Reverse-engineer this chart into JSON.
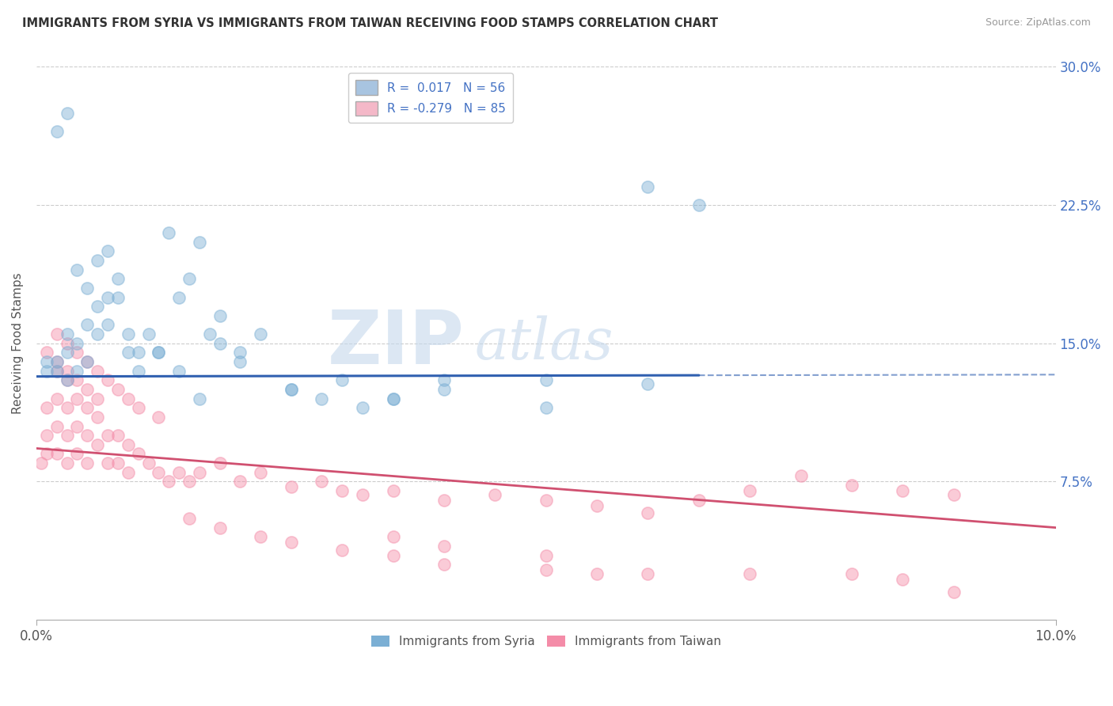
{
  "title": "IMMIGRANTS FROM SYRIA VS IMMIGRANTS FROM TAIWAN RECEIVING FOOD STAMPS CORRELATION CHART",
  "source": "Source: ZipAtlas.com",
  "ylabel": "Receiving Food Stamps",
  "x_min": 0.0,
  "x_max": 0.1,
  "y_min": 0.0,
  "y_max": 0.3,
  "x_tick_labels": [
    "0.0%",
    "10.0%"
  ],
  "y_ticks_right": [
    0.075,
    0.15,
    0.225,
    0.3
  ],
  "y_tick_labels_right": [
    "7.5%",
    "15.0%",
    "22.5%",
    "30.0%"
  ],
  "legend_entries": [
    {
      "label": "R =  0.017   N = 56",
      "color": "#a8c4e0"
    },
    {
      "label": "R = -0.279   N = 85",
      "color": "#f4b8c8"
    }
  ],
  "legend_bottom": [
    "Immigrants from Syria",
    "Immigrants from Taiwan"
  ],
  "syria_color": "#7bafd4",
  "taiwan_color": "#f48ca8",
  "syria_line_color": "#3060b0",
  "taiwan_line_color": "#d05070",
  "watermark": "ZIPatlas",
  "background_color": "#ffffff",
  "grid_color": "#cccccc",
  "syria_x": [
    0.001,
    0.001,
    0.002,
    0.002,
    0.003,
    0.003,
    0.003,
    0.004,
    0.004,
    0.005,
    0.005,
    0.006,
    0.006,
    0.007,
    0.007,
    0.008,
    0.009,
    0.01,
    0.011,
    0.012,
    0.013,
    0.014,
    0.015,
    0.016,
    0.017,
    0.018,
    0.02,
    0.022,
    0.025,
    0.028,
    0.032,
    0.035,
    0.04,
    0.05,
    0.06,
    0.065,
    0.002,
    0.003,
    0.004,
    0.005,
    0.006,
    0.007,
    0.008,
    0.009,
    0.01,
    0.012,
    0.014,
    0.016,
    0.018,
    0.02,
    0.025,
    0.03,
    0.035,
    0.04,
    0.05,
    0.06
  ],
  "syria_y": [
    0.135,
    0.14,
    0.14,
    0.135,
    0.155,
    0.145,
    0.13,
    0.15,
    0.135,
    0.16,
    0.14,
    0.17,
    0.155,
    0.175,
    0.16,
    0.185,
    0.155,
    0.145,
    0.155,
    0.145,
    0.21,
    0.175,
    0.185,
    0.205,
    0.155,
    0.165,
    0.145,
    0.155,
    0.125,
    0.12,
    0.115,
    0.12,
    0.13,
    0.115,
    0.235,
    0.225,
    0.265,
    0.275,
    0.19,
    0.18,
    0.195,
    0.2,
    0.175,
    0.145,
    0.135,
    0.145,
    0.135,
    0.12,
    0.15,
    0.14,
    0.125,
    0.13,
    0.12,
    0.125,
    0.13,
    0.128
  ],
  "taiwan_x": [
    0.0005,
    0.001,
    0.001,
    0.001,
    0.002,
    0.002,
    0.002,
    0.002,
    0.003,
    0.003,
    0.003,
    0.003,
    0.004,
    0.004,
    0.004,
    0.005,
    0.005,
    0.005,
    0.006,
    0.006,
    0.007,
    0.007,
    0.008,
    0.008,
    0.009,
    0.009,
    0.01,
    0.011,
    0.012,
    0.013,
    0.014,
    0.015,
    0.016,
    0.018,
    0.02,
    0.022,
    0.025,
    0.028,
    0.03,
    0.032,
    0.035,
    0.04,
    0.045,
    0.05,
    0.055,
    0.06,
    0.065,
    0.07,
    0.075,
    0.08,
    0.085,
    0.09,
    0.001,
    0.002,
    0.002,
    0.003,
    0.003,
    0.004,
    0.004,
    0.005,
    0.005,
    0.006,
    0.006,
    0.007,
    0.008,
    0.009,
    0.01,
    0.012,
    0.015,
    0.018,
    0.022,
    0.025,
    0.03,
    0.035,
    0.04,
    0.05,
    0.06,
    0.07,
    0.08,
    0.085,
    0.09,
    0.035,
    0.04,
    0.05,
    0.055
  ],
  "taiwan_y": [
    0.085,
    0.115,
    0.1,
    0.09,
    0.135,
    0.12,
    0.105,
    0.09,
    0.13,
    0.115,
    0.1,
    0.085,
    0.12,
    0.105,
    0.09,
    0.115,
    0.1,
    0.085,
    0.11,
    0.095,
    0.1,
    0.085,
    0.1,
    0.085,
    0.095,
    0.08,
    0.09,
    0.085,
    0.08,
    0.075,
    0.08,
    0.075,
    0.08,
    0.085,
    0.075,
    0.08,
    0.072,
    0.075,
    0.07,
    0.068,
    0.07,
    0.065,
    0.068,
    0.065,
    0.062,
    0.058,
    0.065,
    0.07,
    0.078,
    0.073,
    0.07,
    0.068,
    0.145,
    0.155,
    0.14,
    0.15,
    0.135,
    0.145,
    0.13,
    0.14,
    0.125,
    0.135,
    0.12,
    0.13,
    0.125,
    0.12,
    0.115,
    0.11,
    0.055,
    0.05,
    0.045,
    0.042,
    0.038,
    0.035,
    0.03,
    0.027,
    0.025,
    0.025,
    0.025,
    0.022,
    0.015,
    0.045,
    0.04,
    0.035,
    0.025
  ],
  "syria_line_y0": 0.132,
  "syria_line_y1": 0.133,
  "taiwan_line_y0": 0.093,
  "taiwan_line_y1": 0.05
}
